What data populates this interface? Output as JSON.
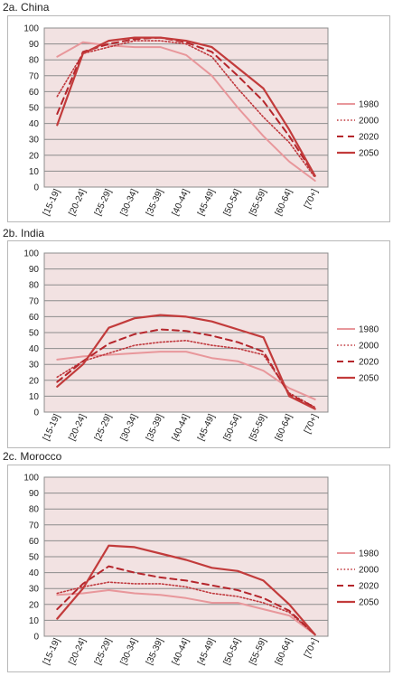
{
  "chart_data": [
    {
      "type": "line",
      "title": "2a. China",
      "categories": [
        "[15-19]",
        "[20-24]",
        "[25-29]",
        "[30-34]",
        "[35-39]",
        "[40-44]",
        "[45-49]",
        "[50-54]",
        "[55-59]",
        "[60-64]",
        "[70+]"
      ],
      "ylim": [
        0,
        100
      ],
      "yticks": [
        0,
        10,
        20,
        30,
        40,
        50,
        60,
        70,
        80,
        90,
        100
      ],
      "grid": true,
      "legend_position": "right",
      "series": [
        {
          "name": "1980",
          "style": "solid-light",
          "values": [
            82,
            91,
            89,
            88,
            88,
            83,
            70,
            50,
            32,
            16,
            4
          ]
        },
        {
          "name": "2000",
          "style": "dotted",
          "values": [
            57,
            84,
            88,
            92,
            92,
            90,
            82,
            62,
            44,
            28,
            6
          ]
        },
        {
          "name": "2020",
          "style": "dashed",
          "values": [
            46,
            85,
            90,
            93,
            94,
            91,
            85,
            70,
            54,
            32,
            7
          ]
        },
        {
          "name": "2050",
          "style": "solid-dark",
          "values": [
            39,
            84,
            92,
            94,
            94,
            92,
            88,
            75,
            62,
            36,
            7
          ]
        }
      ]
    },
    {
      "type": "line",
      "title": "2b. India",
      "categories": [
        "[15-19]",
        "[20-24]",
        "[25-29]",
        "[30-34]",
        "[35-39]",
        "[40-44]",
        "[45-49]",
        "[50-54]",
        "[55-59]",
        "[60-64]",
        "[70+]"
      ],
      "ylim": [
        0,
        100
      ],
      "yticks": [
        0,
        10,
        20,
        30,
        40,
        50,
        60,
        70,
        80,
        90,
        100
      ],
      "grid": true,
      "legend_position": "right",
      "series": [
        {
          "name": "1980",
          "style": "solid-light",
          "values": [
            33,
            35,
            36,
            37,
            38,
            38,
            34,
            32,
            26,
            15,
            8
          ]
        },
        {
          "name": "2000",
          "style": "dotted",
          "values": [
            22,
            32,
            37,
            42,
            44,
            45,
            42,
            40,
            36,
            12,
            3
          ]
        },
        {
          "name": "2020",
          "style": "dashed",
          "values": [
            19,
            32,
            43,
            49,
            52,
            51,
            48,
            44,
            38,
            11,
            3
          ]
        },
        {
          "name": "2050",
          "style": "solid-dark",
          "values": [
            16,
            30,
            53,
            59,
            61,
            60,
            57,
            52,
            47,
            10,
            2
          ]
        }
      ]
    },
    {
      "type": "line",
      "title": "2c. Morocco",
      "categories": [
        "[15-19]",
        "[20-24]",
        "[25-29]",
        "[30-34]",
        "[35-39]",
        "[40-44]",
        "[45-49]",
        "[50-54]",
        "[55-59]",
        "[60-64]",
        "[70+]"
      ],
      "ylim": [
        0,
        100
      ],
      "yticks": [
        0,
        10,
        20,
        30,
        40,
        50,
        60,
        70,
        80,
        90,
        100
      ],
      "grid": true,
      "legend_position": "right",
      "series": [
        {
          "name": "1980",
          "style": "solid-light",
          "values": [
            26,
            27,
            29,
            27,
            26,
            24,
            21,
            21,
            17,
            13,
            1
          ]
        },
        {
          "name": "2000",
          "style": "dotted",
          "values": [
            27,
            31,
            34,
            33,
            33,
            31,
            27,
            25,
            21,
            15,
            1
          ]
        },
        {
          "name": "2020",
          "style": "dashed",
          "values": [
            17,
            33,
            44,
            40,
            37,
            35,
            32,
            29,
            24,
            16,
            1
          ]
        },
        {
          "name": "2050",
          "style": "solid-dark",
          "values": [
            11,
            30,
            57,
            56,
            52,
            48,
            43,
            41,
            35,
            20,
            1
          ]
        }
      ]
    }
  ],
  "colors": {
    "plot_background": "#f2e2e2",
    "gridline": "#8c8c8c",
    "axis": "#8c8c8c",
    "solid-light": "#e8979b",
    "dotted": "#c0393e",
    "dashed": "#b5262c",
    "solid-dark": "#c23b3b"
  }
}
